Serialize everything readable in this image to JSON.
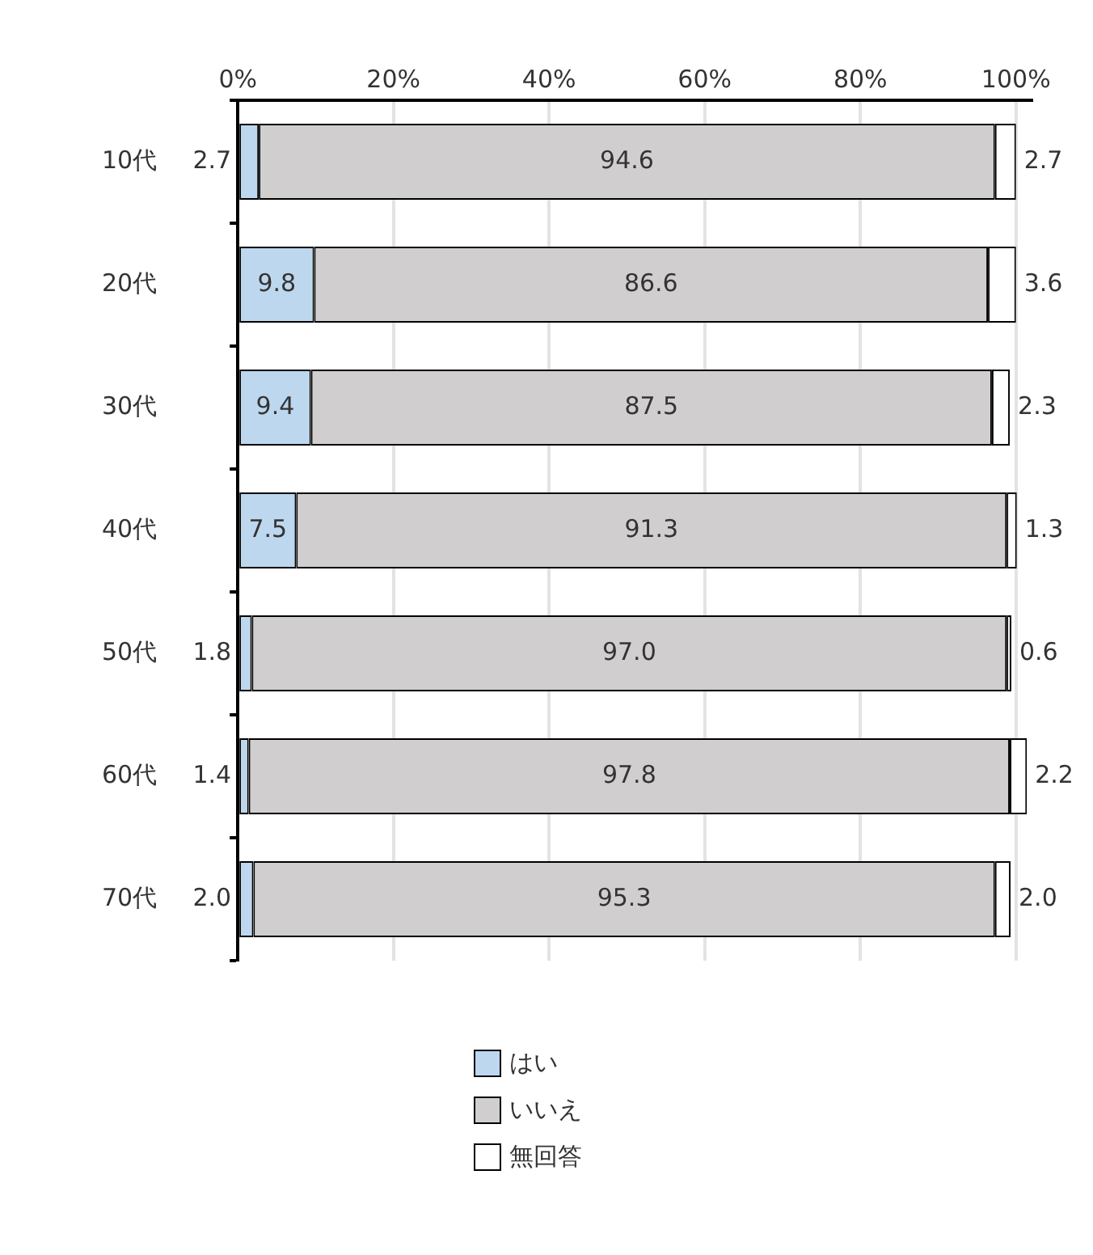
{
  "chart_data": {
    "type": "bar",
    "orientation": "horizontal",
    "stacked": true,
    "categories": [
      "10代",
      "20代",
      "30代",
      "40代",
      "50代",
      "60代",
      "70代"
    ],
    "series": [
      {
        "name": "はい",
        "color": "#bdd7ee",
        "values": [
          2.7,
          9.8,
          9.4,
          7.5,
          1.8,
          1.4,
          2.0
        ],
        "value_labels": [
          "2.7",
          "9.8",
          "9.4",
          "7.5",
          "1.8",
          "1.4",
          "2.0"
        ]
      },
      {
        "name": "いいえ",
        "color": "#d0cece",
        "values": [
          94.6,
          86.6,
          87.5,
          91.3,
          97.0,
          97.8,
          95.3
        ],
        "value_labels": [
          "94.6",
          "86.6",
          "87.5",
          "91.3",
          "97.0",
          "97.8",
          "95.3"
        ]
      },
      {
        "name": "無回答",
        "color": "#ffffff",
        "values": [
          2.7,
          3.6,
          2.3,
          1.3,
          0.6,
          2.2,
          2.0
        ],
        "value_labels": [
          "2.7",
          "3.6",
          "2.3",
          "1.3",
          "0.6",
          "2.2",
          "2.0"
        ]
      }
    ],
    "xlim": [
      0,
      102
    ],
    "xticks": [
      {
        "value": 0,
        "label": "0%"
      },
      {
        "value": 20,
        "label": "20%"
      },
      {
        "value": 40,
        "label": "40%"
      },
      {
        "value": 60,
        "label": "60%"
      },
      {
        "value": 80,
        "label": "80%"
      },
      {
        "value": 100,
        "label": "100%"
      }
    ],
    "grid": "x",
    "legend": "bottom"
  }
}
